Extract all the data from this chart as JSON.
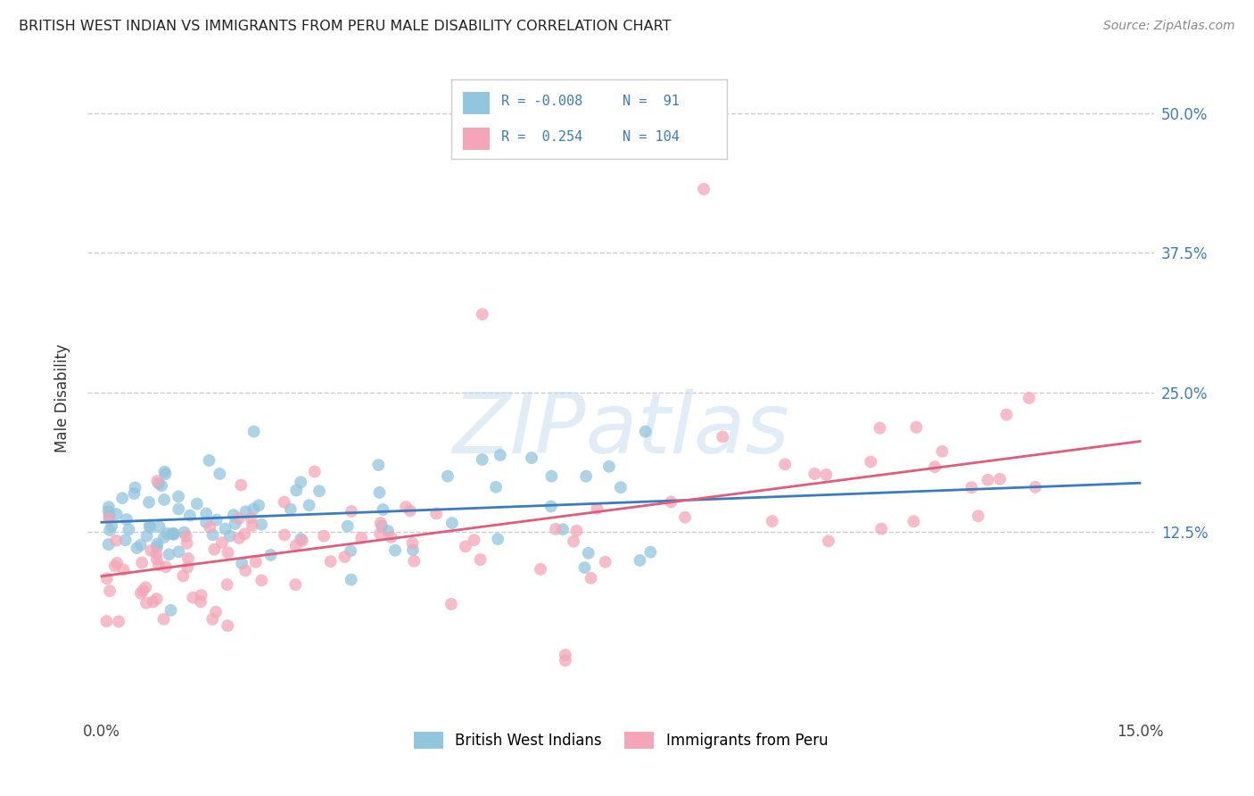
{
  "title": "BRITISH WEST INDIAN VS IMMIGRANTS FROM PERU MALE DISABILITY CORRELATION CHART",
  "source": "Source: ZipAtlas.com",
  "ylabel": "Male Disability",
  "color_blue": "#92c5de",
  "color_pink": "#f4a6b8",
  "color_blue_line": "#3a7cbf",
  "color_pink_line": "#e05c7a",
  "color_dashed": "#b0b0b0",
  "color_grid": "#cccccc",
  "label_blue": "British West Indians",
  "label_pink": "Immigrants from Peru",
  "xmin": 0.0,
  "xmax": 0.15,
  "ymin": -0.04,
  "ymax": 0.53,
  "ytick_vals": [
    0.125,
    0.25,
    0.375,
    0.5
  ],
  "ytick_labels": [
    "12.5%",
    "25.0%",
    "37.5%",
    "50.0%"
  ],
  "watermark_color": "#c8dff0",
  "legend_text_color": "#3a7cbf"
}
